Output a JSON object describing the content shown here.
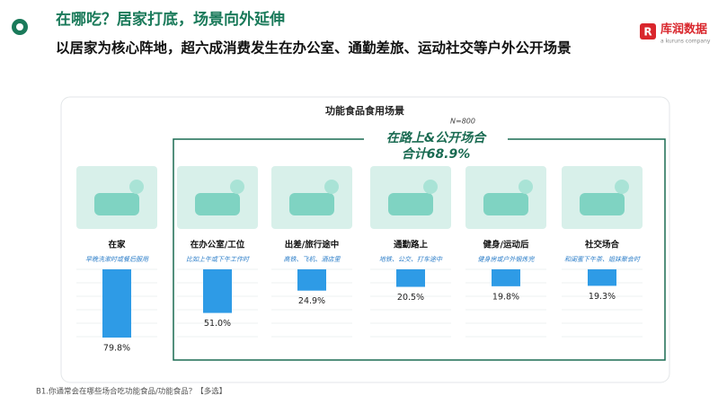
{
  "header": {
    "title": "在哪吃？居家打底，场景向外延伸",
    "subtitle": "以居家为核心阵地，超六成消费发生在办公室、通勤差旅、运动社交等户外公开场景",
    "logo": "库润数据",
    "logo_sub": "a kuruns company"
  },
  "chart_data": {
    "type": "bar",
    "title": "功能食品食用场景",
    "sample": "N=800",
    "annotation": {
      "title": "在路上&公开场合",
      "total": "合计68.9%"
    },
    "categories": [
      "在家",
      "在办公室/工位",
      "出差/旅行途中",
      "通勤路上",
      "健身/运动后",
      "社交场合"
    ],
    "descriptions": [
      "早晚洗漱时或餐后服用",
      "比如上午或下午工作时",
      "高铁、飞机、酒店里",
      "地铁、公交、打车途中",
      "健身房或户外锻炼完",
      "和闺蜜下午茶、姐妹聚会时"
    ],
    "values": [
      79.8,
      51.0,
      24.9,
      20.5,
      19.8,
      19.3
    ],
    "value_labels": [
      "79.8%",
      "51.0%",
      "24.9%",
      "20.5%",
      "19.8%",
      "19.3%"
    ],
    "color": "#2e9be6"
  },
  "footnote": "B1.你通常会在哪些场合吃功能食品/功能食品？【多选】"
}
